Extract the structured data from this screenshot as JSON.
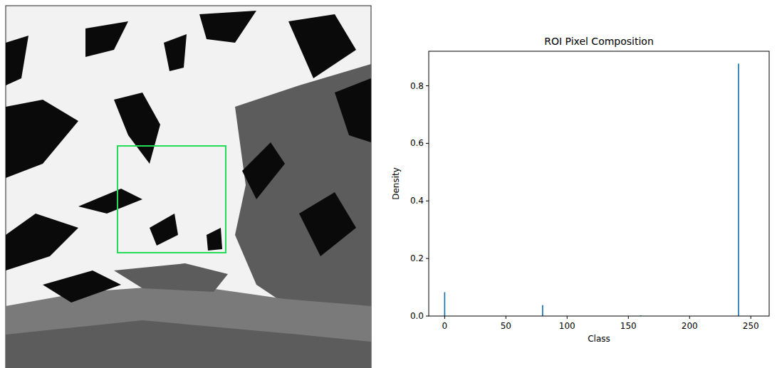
{
  "chart_data": {
    "type": "bar",
    "title": "ROI Pixel Composition",
    "x_label": "Class",
    "y_label": "Density",
    "x": [
      0,
      80,
      160,
      240
    ],
    "values": [
      0.083,
      0.038,
      0.002,
      0.877
    ],
    "color": "#1f77b4",
    "xlim": [
      -13,
      265
    ],
    "ylim": [
      0,
      0.92
    ],
    "xticks": [
      0,
      50,
      100,
      150,
      200,
      250
    ],
    "yticks": [
      {
        "value": 0,
        "label": "0.0"
      },
      0.2,
      0.4,
      0.6,
      0.8
    ],
    "grid": false
  }
}
